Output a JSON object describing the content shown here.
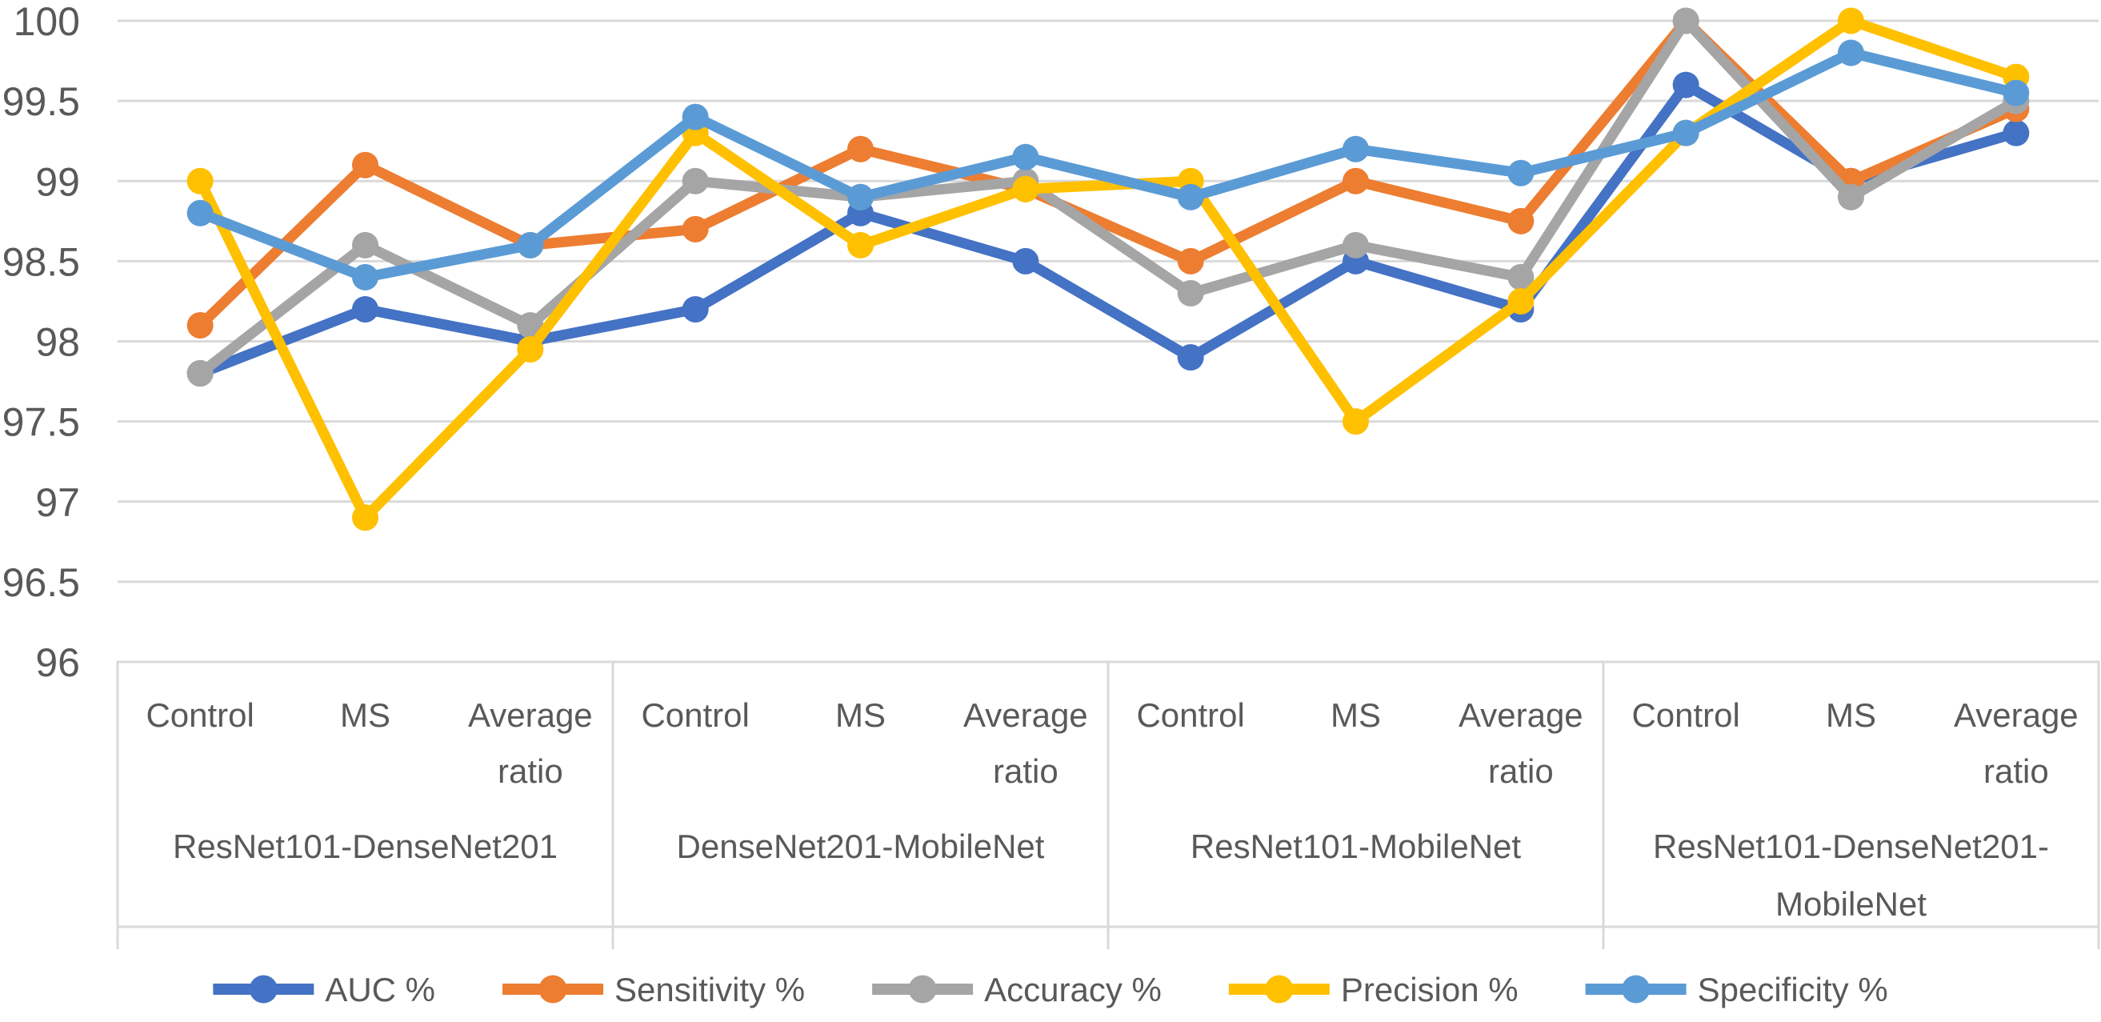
{
  "chart_data": {
    "type": "line",
    "title": "",
    "y_axis": {
      "min": 96,
      "max": 100,
      "step": 0.5,
      "tick_labels": [
        "100",
        "99.5",
        "99",
        "98.5",
        "98",
        "97.5",
        "97",
        "96.5",
        "96"
      ]
    },
    "x_axis": {
      "groups": [
        {
          "label": "ResNet101-DenseNet201",
          "categories": [
            "Control",
            "MS",
            "Average ratio"
          ]
        },
        {
          "label": "DenseNet201-MobileNet",
          "categories": [
            "Control",
            "MS",
            "Average ratio"
          ]
        },
        {
          "label": "ResNet101-MobileNet",
          "categories": [
            "Control",
            "MS",
            "Average ratio"
          ]
        },
        {
          "label": "ResNet101-DenseNet201-MobileNet",
          "categories": [
            "Control",
            "MS",
            "Average ratio"
          ]
        }
      ]
    },
    "series": [
      {
        "name": "AUC %",
        "color": "#4472C4",
        "values": [
          97.8,
          98.2,
          98.0,
          98.2,
          98.8,
          98.5,
          97.9,
          98.5,
          98.2,
          99.6,
          99.0,
          99.3
        ]
      },
      {
        "name": "Sensitivity %",
        "color": "#ED7D31",
        "values": [
          98.1,
          99.1,
          98.6,
          98.7,
          99.2,
          98.95,
          98.5,
          99.0,
          98.75,
          100.0,
          99.0,
          99.45
        ]
      },
      {
        "name": "Accuracy %",
        "color": "#A5A5A5",
        "values": [
          97.8,
          98.6,
          98.1,
          99.0,
          98.9,
          99.0,
          98.3,
          98.6,
          98.4,
          100.0,
          98.9,
          99.5
        ]
      },
      {
        "name": "Precision %",
        "color": "#FFC000",
        "values": [
          99.0,
          96.9,
          97.95,
          99.3,
          98.6,
          98.95,
          99.0,
          97.5,
          98.25,
          99.3,
          100.0,
          99.65
        ]
      },
      {
        "name": "Specificity %",
        "color": "#5B9BD5",
        "values": [
          98.8,
          98.4,
          98.6,
          99.4,
          98.9,
          99.15,
          98.9,
          99.2,
          99.05,
          99.3,
          99.8,
          99.55
        ]
      }
    ],
    "legend": {
      "position": "bottom",
      "entries": [
        "AUC %",
        "Sensitivity %",
        "Accuracy %",
        "Precision %",
        "Specificity %"
      ]
    },
    "grid": true,
    "styles": {
      "grid_color": "#D9D9D9",
      "axis_box_color": "#D9D9D9",
      "text_color": "#595959",
      "background": "#FFFFFF"
    }
  }
}
